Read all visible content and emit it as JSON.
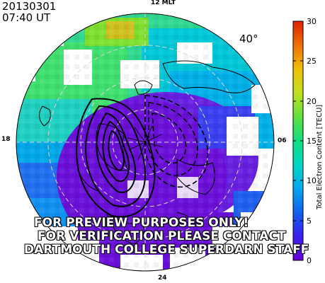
{
  "header": {
    "date": "20130301",
    "time": "07:40 UT",
    "min_latitude_label": "40°"
  },
  "mlt_labels": {
    "top": "12 MLT",
    "bottom": "24",
    "left": "18",
    "right": "06"
  },
  "watermark": {
    "line1": "FOR PREVIEW PURPOSES ONLY!",
    "line2": "FOR VERIFICATION PLEASE CONTACT",
    "line3": "DARTMOUTH COLLEGE SUPERDARN STAFF"
  },
  "colorbar": {
    "title": "Total Electron Content [TECU]",
    "min": 0,
    "max": 30,
    "ticks": [
      "0",
      "5",
      "10",
      "15",
      "20",
      "25",
      "30"
    ],
    "colorscale": [
      "#7000d0",
      "#3030f0",
      "#00a0f0",
      "#00d8c0",
      "#40e060",
      "#c0e020",
      "#f0a000",
      "#f03000"
    ]
  }
}
